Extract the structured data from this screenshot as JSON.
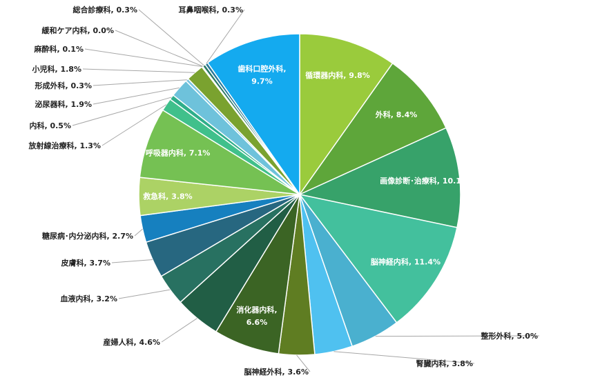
{
  "chart_data": {
    "type": "pie",
    "title": "",
    "slices": [
      {
        "label": "循環器内科",
        "value": 9.8,
        "text": "循環器内科, 9.8%",
        "color": "#9acb3c",
        "inside": true
      },
      {
        "label": "外科",
        "value": 8.4,
        "text": "外科, 8.4%",
        "color": "#5ea63a",
        "inside": true
      },
      {
        "label": "画像診断・治療科",
        "value": 10.1,
        "text": "画像診断･治療科, 10.1%",
        "color": "#37a26a",
        "inside": true
      },
      {
        "label": "脳神経内科",
        "value": 11.4,
        "text": "脳神経内科, 11.4%",
        "color": "#43c09d",
        "inside": true
      },
      {
        "label": "整形外科",
        "value": 5.0,
        "text": "整形外科, 5.0%",
        "color": "#4ab0cf",
        "inside": false
      },
      {
        "label": "腎臓内科",
        "value": 3.8,
        "text": "腎臓内科, 3.8%",
        "color": "#4fc1f0",
        "inside": false
      },
      {
        "label": "脳神経外科",
        "value": 3.6,
        "text": "脳神経外科, 3.6%",
        "color": "#5f7d22",
        "inside": false
      },
      {
        "label": "消化器内科",
        "value": 6.6,
        "text": "消化器内科,\n6.6%",
        "color": "#3b6424",
        "inside": true
      },
      {
        "label": "産婦人科",
        "value": 4.6,
        "text": "産婦人科, 4.6%",
        "color": "#215e45",
        "inside": false
      },
      {
        "label": "血液内科",
        "value": 3.2,
        "text": "血液内科, 3.2%",
        "color": "#287161",
        "inside": false
      },
      {
        "label": "皮膚科",
        "value": 3.7,
        "text": "皮膚科, 3.7%",
        "color": "#276780",
        "inside": false
      },
      {
        "label": "糖尿病・内分泌内科",
        "value": 2.7,
        "text": "糖尿病･内分泌内科, 2.7%",
        "color": "#1680bf",
        "inside": false
      },
      {
        "label": "救急科",
        "value": 3.8,
        "text": "救急科, 3.8%",
        "color": "#acd265",
        "inside": true
      },
      {
        "label": "呼吸器内科",
        "value": 7.1,
        "text": "呼吸器内科, 7.1%",
        "color": "#75c153",
        "inside": true
      },
      {
        "label": "放射線治療科",
        "value": 1.3,
        "text": "放射線治療科, 1.3%",
        "color": "#40c08b",
        "inside": false
      },
      {
        "label": "内科",
        "value": 0.5,
        "text": "内科, 0.5%",
        "color": "#2fae8a",
        "inside": false
      },
      {
        "label": "泌尿器科",
        "value": 1.9,
        "text": "泌尿器科, 1.9%",
        "color": "#6ec2db",
        "inside": false
      },
      {
        "label": "形成外科",
        "value": 0.3,
        "text": "形成外科, 0.3%",
        "color": "#7bc5e0",
        "inside": false
      },
      {
        "label": "小児科",
        "value": 1.8,
        "text": "小児科, 1.8%",
        "color": "#7aa22f",
        "inside": false
      },
      {
        "label": "麻酔科",
        "value": 0.1,
        "text": "麻酔科, 0.1%",
        "color": "#4b7f2a",
        "inside": false
      },
      {
        "label": "緩和ケア内科",
        "value": 0.0,
        "text": "緩和ケア内科, 0.0%",
        "color": "#3f7a3a",
        "inside": false
      },
      {
        "label": "総合診療科",
        "value": 0.3,
        "text": "総合診療科, 0.3%",
        "color": "#2c7a66",
        "inside": false
      },
      {
        "label": "耳鼻咽喉科",
        "value": 0.3,
        "text": "耳鼻咽喉科, 0.3%",
        "color": "#2a7a9a",
        "inside": false
      },
      {
        "label": "歯科口腔外科",
        "value": 9.7,
        "text": "歯科口腔外科,\n9.7%",
        "color": "#14aaef",
        "inside": true
      }
    ]
  }
}
